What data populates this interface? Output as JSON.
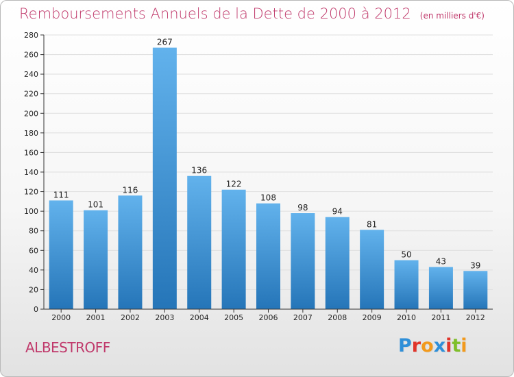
{
  "title": "Remboursements Annuels de la Dette de 2000 à 2012",
  "unit": "(en milliers d'€)",
  "commune": "ALBESTROFF",
  "logo": {
    "text": "Proxiti",
    "letters": [
      "P",
      "r",
      "o",
      "x",
      "i",
      "t",
      "i"
    ],
    "colors": [
      "#2f8fd8",
      "#e0342a",
      "#f29a1d",
      "#2f8fd8",
      "#e0342a",
      "#7fbf2a",
      "#f29a1d"
    ]
  },
  "colors": {
    "title": "#c0396b",
    "bar_top": "#62b2ec",
    "bar_bottom": "#2575b8",
    "grid": "#dedede",
    "axis": "#333333",
    "text": "#222222"
  },
  "chart_data": {
    "type": "bar",
    "categories": [
      "2000",
      "2001",
      "2002",
      "2003",
      "2004",
      "2005",
      "2006",
      "2007",
      "2008",
      "2009",
      "2010",
      "2011",
      "2012"
    ],
    "values": [
      111,
      101,
      116,
      267,
      136,
      122,
      108,
      98,
      94,
      81,
      50,
      43,
      39
    ],
    "ylim": [
      0,
      280
    ],
    "yticks": [
      0,
      20,
      40,
      60,
      80,
      100,
      120,
      140,
      160,
      180,
      200,
      220,
      240,
      260,
      280
    ],
    "grid": true,
    "data_labels": true,
    "xlabel": "",
    "ylabel": ""
  }
}
